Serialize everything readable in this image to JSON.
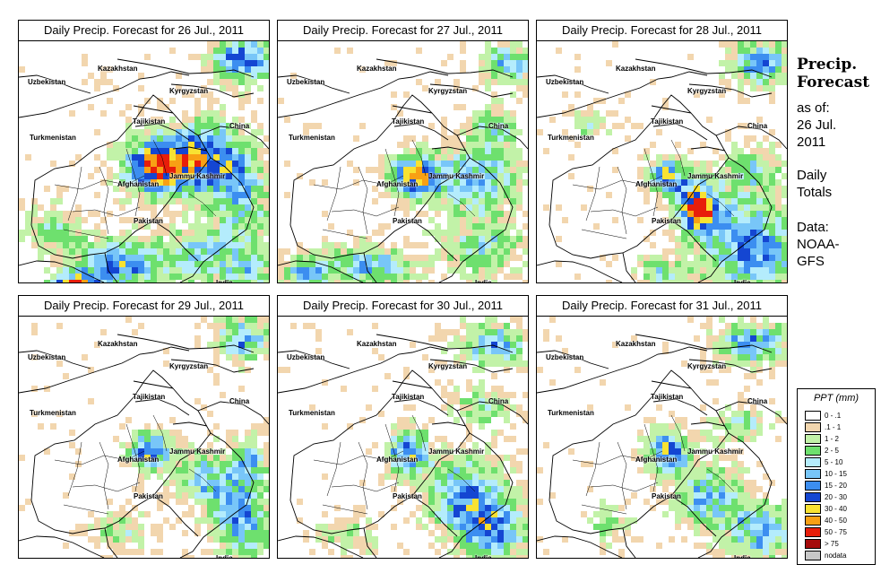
{
  "panels": [
    {
      "title": "Daily Precip. Forecast for  26 Jul., 2011"
    },
    {
      "title": "Daily Precip. Forecast for  27 Jul., 2011"
    },
    {
      "title": "Daily Precip. Forecast for  28 Jul., 2011"
    },
    {
      "title": "Daily Precip. Forecast for  29 Jul., 2011"
    },
    {
      "title": "Daily Precip. Forecast for  30 Jul., 2011"
    },
    {
      "title": "Daily Precip. Forecast for  31 Jul., 2011"
    }
  ],
  "map_labels": {
    "uzbekistan": "Uzbekistan",
    "kazakhstan": "Kazakhstan",
    "kyrgyzstan": "Kyrgyzstan",
    "tajikistan": "Tajikistan",
    "china": "China",
    "turkmenistan": "Turkmenistan",
    "afghanistan": "Afghanistan",
    "jammu_kashmir": "Jammu Kashmir",
    "pakistan": "Pakistan",
    "india": "India"
  },
  "side": {
    "heading_line1": "Precip.",
    "heading_line2": "Forecast",
    "asof": "as of:",
    "date_line1": "26 Jul.",
    "date_line2": "2011",
    "daily": "Daily",
    "totals": "Totals",
    "data_label": "Data:",
    "source_line1": "NOAA-",
    "source_line2": "GFS"
  },
  "legend": {
    "title": "PPT (mm)",
    "items": [
      {
        "label": "0 - .1",
        "color": "#ffffff"
      },
      {
        "label": ".1 - 1",
        "color": "#f2d6ae"
      },
      {
        "label": "1 - 2",
        "color": "#c2f2a8"
      },
      {
        "label": "2 - 5",
        "color": "#6ee06e"
      },
      {
        "label": "5 - 10",
        "color": "#b4ecfc"
      },
      {
        "label": "10 - 15",
        "color": "#78c6f8"
      },
      {
        "label": "15 - 20",
        "color": "#3c8ef0"
      },
      {
        "label": "20 - 30",
        "color": "#1446d2"
      },
      {
        "label": "30 - 40",
        "color": "#f8e232"
      },
      {
        "label": "40 - 50",
        "color": "#f8a014"
      },
      {
        "label": "50 - 75",
        "color": "#e81e0a"
      },
      {
        "label": "> 75",
        "color": "#a50a0a"
      },
      {
        "label": "nodata",
        "color": "#c8c8c8"
      }
    ]
  }
}
